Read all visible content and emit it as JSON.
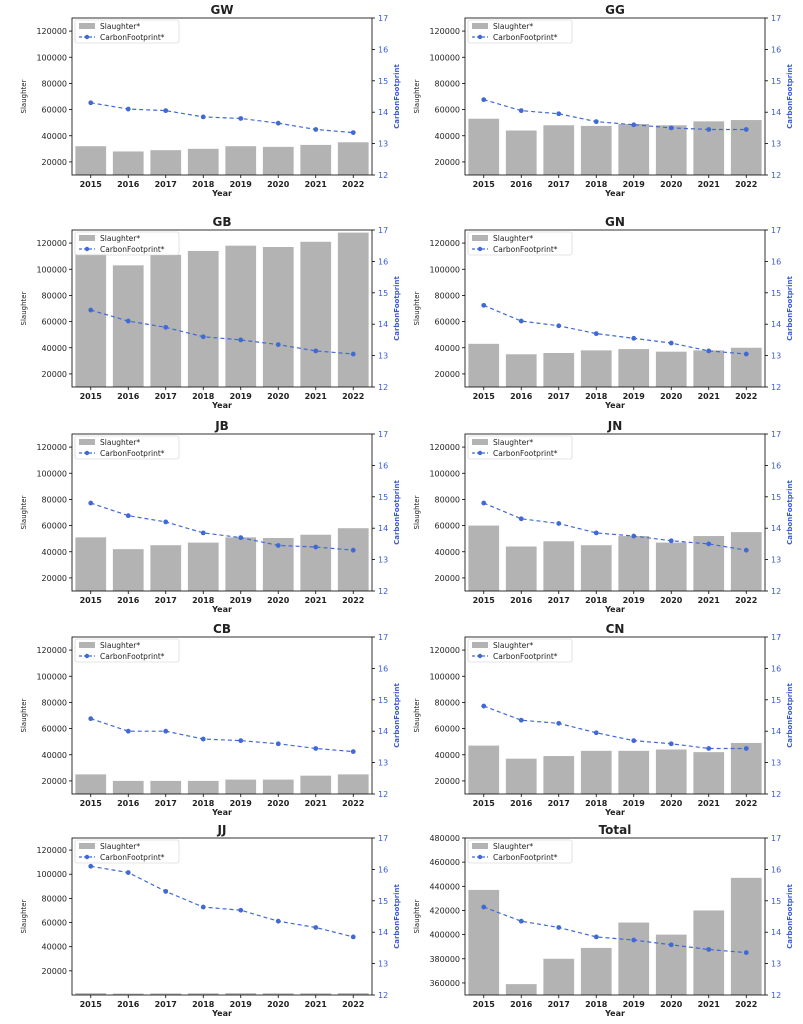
{
  "chart_data": [
    {
      "type": "bar",
      "title": "GW",
      "xlabel": "Year",
      "ylabel": "Slaughter",
      "y2label": "CarbonFootprint",
      "categories": [
        "2015",
        "2016",
        "2017",
        "2018",
        "2019",
        "2020",
        "2021",
        "2022"
      ],
      "ylim": [
        10000,
        130000
      ],
      "yticks": [
        20000,
        40000,
        60000,
        80000,
        100000,
        120000
      ],
      "y2lim": [
        12,
        17
      ],
      "y2ticks": [
        12,
        13,
        14,
        15,
        16,
        17
      ],
      "legend": "top-left",
      "series": [
        {
          "name": "Slaughter*",
          "type": "bar",
          "axis": "left",
          "values": [
            32000,
            28000,
            29000,
            30000,
            32000,
            31500,
            33000,
            35000
          ]
        },
        {
          "name": "CarbonFootprint*",
          "type": "line",
          "axis": "right",
          "values": [
            14.3,
            14.1,
            14.05,
            13.85,
            13.8,
            13.65,
            13.45,
            13.35
          ]
        }
      ]
    },
    {
      "type": "bar",
      "title": "GG",
      "xlabel": "Year",
      "ylabel": "Slaughter",
      "y2label": "CarbonFootprint",
      "categories": [
        "2015",
        "2016",
        "2017",
        "2018",
        "2019",
        "2020",
        "2021",
        "2022"
      ],
      "ylim": [
        10000,
        130000
      ],
      "yticks": [
        20000,
        40000,
        60000,
        80000,
        100000,
        120000
      ],
      "y2lim": [
        12,
        17
      ],
      "y2ticks": [
        12,
        13,
        14,
        15,
        16,
        17
      ],
      "legend": "top-left",
      "series": [
        {
          "name": "Slaughter*",
          "type": "bar",
          "axis": "left",
          "values": [
            53000,
            44000,
            48000,
            47500,
            49000,
            48000,
            51000,
            52000
          ]
        },
        {
          "name": "CarbonFootprint*",
          "type": "line",
          "axis": "right",
          "values": [
            14.4,
            14.05,
            13.95,
            13.7,
            13.6,
            13.5,
            13.45,
            13.45
          ]
        }
      ]
    },
    {
      "type": "bar",
      "title": "GB",
      "xlabel": "Year",
      "ylabel": "Slaughter",
      "y2label": "CarbonFootprint",
      "categories": [
        "2015",
        "2016",
        "2017",
        "2018",
        "2019",
        "2020",
        "2021",
        "2022"
      ],
      "ylim": [
        10000,
        130000
      ],
      "yticks": [
        20000,
        40000,
        60000,
        80000,
        100000,
        120000
      ],
      "y2lim": [
        12,
        17
      ],
      "y2ticks": [
        12,
        13,
        14,
        15,
        16,
        17
      ],
      "legend": "top-left",
      "series": [
        {
          "name": "Slaughter*",
          "type": "bar",
          "axis": "left",
          "values": [
            112000,
            103000,
            111000,
            114000,
            118000,
            117000,
            121000,
            128000
          ]
        },
        {
          "name": "CarbonFootprint*",
          "type": "line",
          "axis": "right",
          "values": [
            14.45,
            14.1,
            13.9,
            13.6,
            13.5,
            13.35,
            13.15,
            13.05
          ]
        }
      ]
    },
    {
      "type": "bar",
      "title": "GN",
      "xlabel": "Year",
      "ylabel": "Slaughter",
      "y2label": "CarbonFootprint",
      "categories": [
        "2015",
        "2016",
        "2017",
        "2018",
        "2019",
        "2020",
        "2021",
        "2022"
      ],
      "ylim": [
        10000,
        130000
      ],
      "yticks": [
        20000,
        40000,
        60000,
        80000,
        100000,
        120000
      ],
      "y2lim": [
        12,
        17
      ],
      "y2ticks": [
        12,
        13,
        14,
        15,
        16,
        17
      ],
      "legend": "top-left",
      "series": [
        {
          "name": "Slaughter*",
          "type": "bar",
          "axis": "left",
          "values": [
            43000,
            35000,
            36000,
            38000,
            39000,
            37000,
            38000,
            40000
          ]
        },
        {
          "name": "CarbonFootprint*",
          "type": "line",
          "axis": "right",
          "values": [
            14.6,
            14.1,
            13.95,
            13.7,
            13.55,
            13.4,
            13.15,
            13.05
          ]
        }
      ]
    },
    {
      "type": "bar",
      "title": "JB",
      "xlabel": "Year",
      "ylabel": "Slaughter",
      "y2label": "CarbonFootprint",
      "categories": [
        "2015",
        "2016",
        "2017",
        "2018",
        "2019",
        "2020",
        "2021",
        "2022"
      ],
      "ylim": [
        10000,
        130000
      ],
      "yticks": [
        20000,
        40000,
        60000,
        80000,
        100000,
        120000
      ],
      "y2lim": [
        12,
        17
      ],
      "y2ticks": [
        12,
        13,
        14,
        15,
        16,
        17
      ],
      "legend": "top-left",
      "series": [
        {
          "name": "Slaughter*",
          "type": "bar",
          "axis": "left",
          "values": [
            51000,
            42000,
            45000,
            47000,
            51000,
            50500,
            53000,
            58000
          ]
        },
        {
          "name": "CarbonFootprint*",
          "type": "line",
          "axis": "right",
          "values": [
            14.8,
            14.4,
            14.2,
            13.85,
            13.7,
            13.45,
            13.4,
            13.3
          ]
        }
      ]
    },
    {
      "type": "bar",
      "title": "JN",
      "xlabel": "Year",
      "ylabel": "Slaughter",
      "y2label": "CarbonFootprint",
      "categories": [
        "2015",
        "2016",
        "2017",
        "2018",
        "2019",
        "2020",
        "2021",
        "2022"
      ],
      "ylim": [
        10000,
        130000
      ],
      "yticks": [
        20000,
        40000,
        60000,
        80000,
        100000,
        120000
      ],
      "y2lim": [
        12,
        17
      ],
      "y2ticks": [
        12,
        13,
        14,
        15,
        16,
        17
      ],
      "legend": "top-left",
      "series": [
        {
          "name": "Slaughter*",
          "type": "bar",
          "axis": "left",
          "values": [
            60000,
            44000,
            48000,
            45000,
            52000,
            47000,
            52000,
            55000
          ]
        },
        {
          "name": "CarbonFootprint*",
          "type": "line",
          "axis": "right",
          "values": [
            14.8,
            14.3,
            14.15,
            13.85,
            13.75,
            13.6,
            13.5,
            13.3
          ]
        }
      ]
    },
    {
      "type": "bar",
      "title": "CB",
      "xlabel": "Year",
      "ylabel": "Slaughter",
      "y2label": "CarbonFootprint",
      "categories": [
        "2015",
        "2016",
        "2017",
        "2018",
        "2019",
        "2020",
        "2021",
        "2022"
      ],
      "ylim": [
        10000,
        130000
      ],
      "yticks": [
        20000,
        40000,
        60000,
        80000,
        100000,
        120000
      ],
      "y2lim": [
        12,
        17
      ],
      "y2ticks": [
        12,
        13,
        14,
        15,
        16,
        17
      ],
      "legend": "top-left",
      "series": [
        {
          "name": "Slaughter*",
          "type": "bar",
          "axis": "left",
          "values": [
            25000,
            20000,
            20000,
            20000,
            21000,
            21000,
            24000,
            25000
          ]
        },
        {
          "name": "CarbonFootprint*",
          "type": "line",
          "axis": "right",
          "values": [
            14.4,
            14.0,
            14.0,
            13.75,
            13.7,
            13.6,
            13.45,
            13.35
          ]
        }
      ]
    },
    {
      "type": "bar",
      "title": "CN",
      "xlabel": "Year",
      "ylabel": "Slaughter",
      "y2label": "CarbonFootprint",
      "categories": [
        "2015",
        "2016",
        "2017",
        "2018",
        "2019",
        "2020",
        "2021",
        "2022"
      ],
      "ylim": [
        10000,
        130000
      ],
      "yticks": [
        20000,
        40000,
        60000,
        80000,
        100000,
        120000
      ],
      "y2lim": [
        12,
        17
      ],
      "y2ticks": [
        12,
        13,
        14,
        15,
        16,
        17
      ],
      "legend": "top-left",
      "series": [
        {
          "name": "Slaughter*",
          "type": "bar",
          "axis": "left",
          "values": [
            47000,
            37000,
            39000,
            43000,
            43000,
            44000,
            42000,
            49000
          ]
        },
        {
          "name": "CarbonFootprint*",
          "type": "line",
          "axis": "right",
          "values": [
            14.8,
            14.35,
            14.25,
            13.95,
            13.7,
            13.6,
            13.45,
            13.45
          ]
        }
      ]
    },
    {
      "type": "bar",
      "title": "JJ",
      "xlabel": "Year",
      "ylabel": "Slaughter",
      "y2label": "CarbonFootprint",
      "categories": [
        "2015",
        "2016",
        "2017",
        "2018",
        "2019",
        "2020",
        "2021",
        "2022"
      ],
      "ylim": [
        0,
        130000
      ],
      "yticks": [
        20000,
        40000,
        60000,
        80000,
        100000,
        120000
      ],
      "y2lim": [
        12,
        17
      ],
      "y2ticks": [
        12,
        13,
        14,
        15,
        16,
        17
      ],
      "legend": "top-left",
      "series": [
        {
          "name": "Slaughter*",
          "type": "bar",
          "axis": "left",
          "values": [
            1500,
            1200,
            1300,
            1400,
            1500,
            1400,
            1400,
            1500
          ]
        },
        {
          "name": "CarbonFootprint*",
          "type": "line",
          "axis": "right",
          "values": [
            16.1,
            15.9,
            15.3,
            14.8,
            14.7,
            14.35,
            14.15,
            13.85
          ]
        }
      ]
    },
    {
      "type": "bar",
      "title": "Total",
      "xlabel": "Year",
      "ylabel": "Slaughter",
      "y2label": "CarbonFootprint",
      "categories": [
        "2015",
        "2016",
        "2017",
        "2018",
        "2019",
        "2020",
        "2021",
        "2022"
      ],
      "ylim": [
        350000,
        480000
      ],
      "yticks": [
        360000,
        380000,
        400000,
        420000,
        440000,
        460000,
        480000
      ],
      "y2lim": [
        12,
        17
      ],
      "y2ticks": [
        12,
        13,
        14,
        15,
        16,
        17
      ],
      "legend": "top-left",
      "series": [
        {
          "name": "Slaughter*",
          "type": "bar",
          "axis": "left",
          "values": [
            437000,
            359000,
            380000,
            389000,
            410000,
            400000,
            420000,
            447000
          ]
        },
        {
          "name": "CarbonFootprint*",
          "type": "line",
          "axis": "right",
          "values": [
            14.8,
            14.35,
            14.15,
            13.85,
            13.75,
            13.6,
            13.45,
            13.35
          ]
        }
      ]
    }
  ],
  "colors": {
    "bar": "#b3b3b3",
    "line": "#4169d4",
    "right_axis": "#3a5bd0",
    "text": "#222222"
  }
}
